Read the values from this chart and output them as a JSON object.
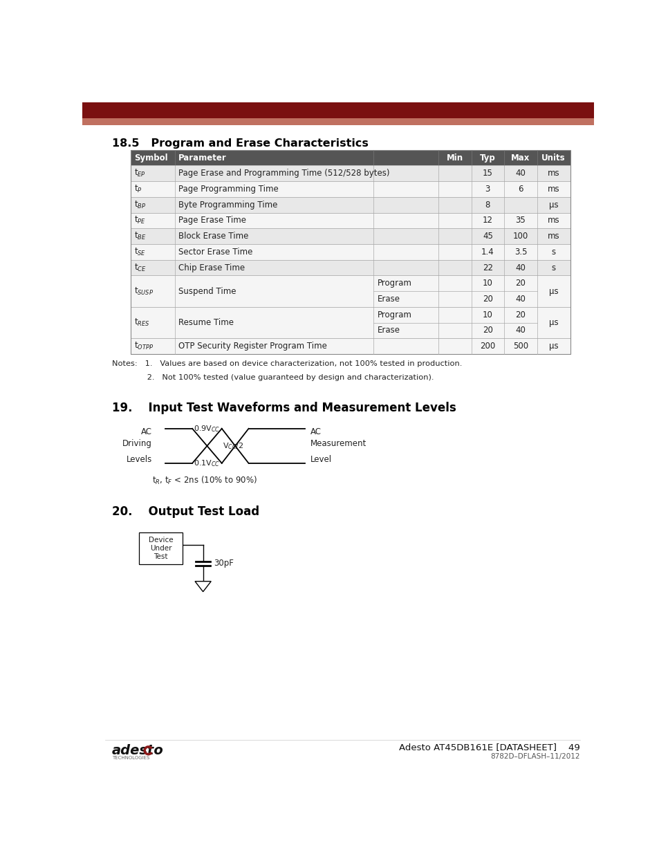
{
  "page_width": 9.54,
  "page_height": 12.35,
  "bg_color": "#ffffff",
  "header_bar_color": "#7a1010",
  "header_bar2_color": "#c07060",
  "section_title_185": "18.5   Program and Erase Characteristics",
  "section_title_19": "19.    Input Test Waveforms and Measurement Levels",
  "section_title_20": "20.    Output Test Load",
  "table_header_bg": "#555555",
  "table_header_color": "#ffffff",
  "table_row_even": "#e8e8e8",
  "table_row_odd": "#f5f5f5",
  "table_cols": [
    "Symbol",
    "Parameter",
    "",
    "Min",
    "Typ",
    "Max",
    "Units"
  ],
  "table_rows": [
    [
      "t_EP",
      "Page Erase and Programming Time (512/528 bytes)",
      "",
      "",
      "15",
      "40",
      "ms"
    ],
    [
      "t_P",
      "Page Programming Time",
      "",
      "",
      "3",
      "6",
      "ms"
    ],
    [
      "t_BP",
      "Byte Programming Time",
      "",
      "",
      "8",
      "",
      "μs"
    ],
    [
      "t_PE",
      "Page Erase Time",
      "",
      "",
      "12",
      "35",
      "ms"
    ],
    [
      "t_BE",
      "Block Erase Time",
      "",
      "",
      "45",
      "100",
      "ms"
    ],
    [
      "t_SE",
      "Sector Erase Time",
      "",
      "",
      "1.4",
      "3.5",
      "s"
    ],
    [
      "t_CE",
      "Chip Erase Time",
      "",
      "",
      "22",
      "40",
      "s"
    ],
    [
      "t_SUSP",
      "Suspend Time",
      "Program",
      "",
      "10",
      "20",
      "μs"
    ],
    [
      "",
      "",
      "Erase",
      "",
      "20",
      "40",
      ""
    ],
    [
      "t_RES",
      "Resume Time",
      "Program",
      "",
      "10",
      "20",
      "μs"
    ],
    [
      "",
      "",
      "Erase",
      "",
      "20",
      "40",
      ""
    ],
    [
      "t_OTPP",
      "OTP Security Register Program Time",
      "",
      "",
      "200",
      "500",
      "μs"
    ]
  ],
  "symbol_display": [
    "t$_{EP}$",
    "t$_{P}$",
    "t$_{BP}$",
    "t$_{PE}$",
    "t$_{BE}$",
    "t$_{SE}$",
    "t$_{CE}$",
    "t$_{SUSP}$",
    "",
    "t$_{RES}$",
    "",
    "t$_{OTPP}$"
  ],
  "notes": [
    "Notes:   1.   Values are based on device characterization, not 100% tested in production.",
    "              2.   Not 100% tested (value guaranteed by design and characterization)."
  ],
  "footer_right1": "Adesto AT45DB161E [DATASHEET]",
  "footer_right2": "8782D–DFLASH–11/2012",
  "footer_page": "49"
}
